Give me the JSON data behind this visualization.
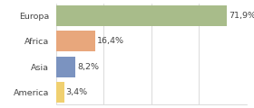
{
  "categories": [
    "Europa",
    "Africa",
    "Asia",
    "America"
  ],
  "values": [
    71.9,
    16.4,
    8.2,
    3.4
  ],
  "labels": [
    "71,9%",
    "16,4%",
    "8,2%",
    "3,4%"
  ],
  "colors": [
    "#a8bc8a",
    "#e8a77c",
    "#7b93c0",
    "#f0d070"
  ],
  "xlim": [
    0,
    80
  ],
  "background_color": "#ffffff",
  "bar_height": 0.82,
  "label_fontsize": 6.8,
  "category_fontsize": 6.8
}
